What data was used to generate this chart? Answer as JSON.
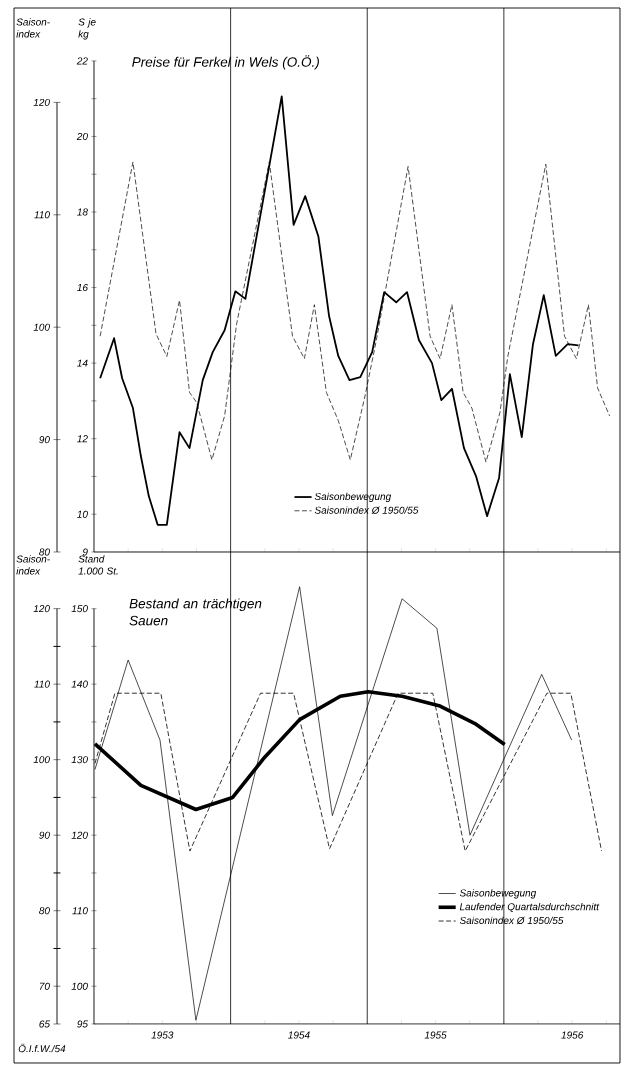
{
  "chart_data": [
    {
      "type": "line",
      "title": "Preise für Ferkel in Wels (O.Ö.)",
      "ylabel": "Saison- index",
      "y2label": "S je kg",
      "xlim": [
        1953,
        1956.85
      ],
      "xticks": [
        {
          "value": 1953.25,
          "label": null
        },
        {
          "value": 1953.5,
          "label": null
        },
        {
          "value": 1953.75,
          "label": null
        },
        {
          "value": 1954.25,
          "label": null
        },
        {
          "value": 1954.5,
          "label": null
        },
        {
          "value": 1954.75,
          "label": null
        },
        {
          "value": 1955.25,
          "label": null
        },
        {
          "value": 1955.5,
          "label": null
        },
        {
          "value": 1955.75,
          "label": null
        },
        {
          "value": 1956.25,
          "label": null
        },
        {
          "value": 1956.5,
          "label": null
        },
        {
          "value": 1956.75,
          "label": null
        }
      ],
      "ylim": [
        80,
        128.4
      ],
      "yticks": [
        80,
        90,
        100,
        110,
        120
      ],
      "y2lim": [
        9,
        23.4
      ],
      "y2ticks": [
        9,
        10,
        {
          "value": 11,
          "label": null
        },
        12,
        {
          "value": 13,
          "label": null
        },
        14,
        {
          "value": 15,
          "label": null
        },
        16,
        {
          "value": 17,
          "label": null
        },
        18,
        {
          "value": 19,
          "label": null
        },
        20,
        {
          "value": 21,
          "label": null
        },
        22
      ],
      "tick_labels": "y",
      "legend": "bottom",
      "ref_lines": [
        {
          "axis": "x",
          "value": 1954
        },
        {
          "axis": "x",
          "value": 1955
        },
        {
          "axis": "x",
          "value": 1956
        }
      ],
      "series": [
        {
          "name": "Saisonbewegung",
          "color": "#000000",
          "line_style": "solid",
          "axis": "y2",
          "x": [
            1953.045,
            1953.147,
            1953.206,
            1953.285,
            1953.343,
            1953.401,
            1953.466,
            1953.533,
            1953.626,
            1953.699,
            1953.796,
            1953.869,
            1953.956,
            1954.035,
            1954.108,
            1954.374,
            1954.461,
            1954.546,
            1954.642,
            1954.721,
            1954.788,
            1954.87,
            1954.949,
            1955.036,
            1955.124,
            1955.212,
            1955.291,
            1955.378,
            1955.474,
            1955.542,
            1955.62,
            1955.708,
            1955.796,
            1955.877,
            1955.965,
            1956.044,
            1956.131,
            1956.213,
            1956.292,
            1956.38,
            1956.467,
            1956.546
          ],
          "values": [
            13.6,
            14.66,
            13.6,
            12.81,
            11.54,
            10.48,
            9.72,
            9.72,
            12.17,
            11.75,
            13.55,
            14.29,
            14.87,
            15.9,
            15.7,
            21.06,
            17.66,
            18.42,
            17.36,
            15.24,
            14.19,
            13.55,
            13.63,
            14.29,
            15.88,
            15.61,
            15.88,
            14.61,
            14.0,
            13.02,
            13.32,
            11.75,
            11.01,
            9.95,
            10.96,
            13.71,
            12.04,
            14.5,
            15.8,
            14.19,
            14.5,
            14.47
          ]
        },
        {
          "name": "Saisonindex Ø 1950/55",
          "color": "#000000",
          "line_style": "dashed",
          "x": [
            1953.045,
            1953.285,
            1953.454,
            1953.533,
            1953.626,
            1953.699,
            1953.752,
            1953.863,
            1953.956,
            1954.044,
            1954.283,
            1954.453,
            1954.54,
            1954.613,
            1954.701,
            1954.788,
            1954.876,
            1954.984,
            1955.066,
            1955.299,
            1955.46,
            1955.533,
            1955.62,
            1955.702,
            1955.766,
            1955.869,
            1955.971,
            1956.029,
            1956.307,
            1956.444,
            1956.531,
            1956.619,
            1956.686,
            1956.774
          ],
          "values": [
            99.2,
            114.7,
            99.4,
            97.4,
            102.4,
            94.2,
            93.3,
            88.2,
            92.1,
            100.3,
            114.7,
            99.2,
            97.2,
            102.0,
            94.2,
            91.7,
            88.2,
            93.9,
            98.8,
            114.3,
            99.2,
            97.2,
            102.0,
            94.2,
            92.8,
            88.0,
            92.4,
            97.4,
            114.5,
            99.2,
            97.2,
            102.0,
            94.6,
            92.1
          ]
        }
      ]
    },
    {
      "type": "line",
      "title": "Bestand an trächtigen Sauen",
      "ylabel": "Saison- index",
      "y2label": "Stand 1.000 St.",
      "xlim": [
        1953,
        1956.85
      ],
      "xticks": [
        {
          "value": 1953.25,
          "label": null
        },
        {
          "value": 1953.5,
          "label": "1953"
        },
        {
          "value": 1953.75,
          "label": null
        },
        {
          "value": 1954.25,
          "label": null
        },
        {
          "value": 1954.5,
          "label": "1954"
        },
        {
          "value": 1954.75,
          "label": null
        },
        {
          "value": 1955.25,
          "label": null
        },
        {
          "value": 1955.5,
          "label": "1955"
        },
        {
          "value": 1955.75,
          "label": null
        },
        {
          "value": 1956.25,
          "label": null
        },
        {
          "value": 1956.5,
          "label": "1956"
        },
        {
          "value": 1956.75,
          "label": null
        }
      ],
      "ylim": [
        65,
        127.5
      ],
      "yticks": [
        65,
        70,
        {
          "value": 75,
          "label": null
        },
        80,
        {
          "value": 85,
          "label": null
        },
        90,
        {
          "value": 95,
          "label": null
        },
        100,
        {
          "value": 105,
          "label": null
        },
        110,
        {
          "value": 115,
          "label": null
        },
        120
      ],
      "y2lim": [
        95,
        157.5
      ],
      "y2ticks": [
        95,
        100,
        {
          "value": 105,
          "label": null
        },
        110,
        {
          "value": 115,
          "label": null
        },
        120,
        {
          "value": 125,
          "label": null
        },
        130,
        {
          "value": 135,
          "label": null
        },
        140,
        {
          "value": 145,
          "label": null
        },
        150
      ],
      "legend": "bottom right",
      "annotations": [
        "Ö.I.f.W./54"
      ],
      "ref_lines": [
        {
          "axis": "x",
          "value": 1954
        },
        {
          "axis": "x",
          "value": 1955
        },
        {
          "axis": "x",
          "value": 1956
        }
      ],
      "series": [
        {
          "name": "Saisonbewegung",
          "color": "#000000",
          "line_style": "solid",
          "x": [
            1953.007,
            1953.25,
            1953.483,
            1953.746,
            1954.505,
            1954.745,
            1955.255,
            1955.51,
            1955.752,
            1956.277,
            1956.496
          ],
          "values": [
            98.7,
            113.2,
            102.6,
            65.5,
            122.9,
            92.6,
            121.3,
            117.4,
            90.0,
            111.3,
            102.6
          ]
        },
        {
          "name": "Laufender Quartalsdurchschnitt",
          "color": "#000000",
          "line_style": "solid",
          "x": [
            1953.007,
            1953.343,
            1953.746,
            1954.015,
            1954.248,
            1954.505,
            1954.803,
            1955.007,
            1955.255,
            1955.533,
            1955.796,
            1956.006
          ],
          "values": [
            102.1,
            96.6,
            93.4,
            95.0,
            100.3,
            105.3,
            108.4,
            109.0,
            108.4,
            107.1,
            104.7,
            102.0
          ]
        },
        {
          "name": "Saisonindex Ø 1950/55",
          "color": "#000000",
          "line_style": "dashed",
          "x": [
            1953.007,
            1953.153,
            1953.489,
            1953.702,
            1954.219,
            1954.461,
            1954.724,
            1955.226,
            1955.48,
            1955.717,
            1956.315,
            1956.49,
            1956.715
          ],
          "values": [
            99.5,
            108.8,
            108.8,
            87.9,
            108.8,
            108.8,
            88.2,
            108.8,
            108.8,
            87.9,
            108.8,
            108.8,
            87.9
          ]
        }
      ]
    }
  ]
}
